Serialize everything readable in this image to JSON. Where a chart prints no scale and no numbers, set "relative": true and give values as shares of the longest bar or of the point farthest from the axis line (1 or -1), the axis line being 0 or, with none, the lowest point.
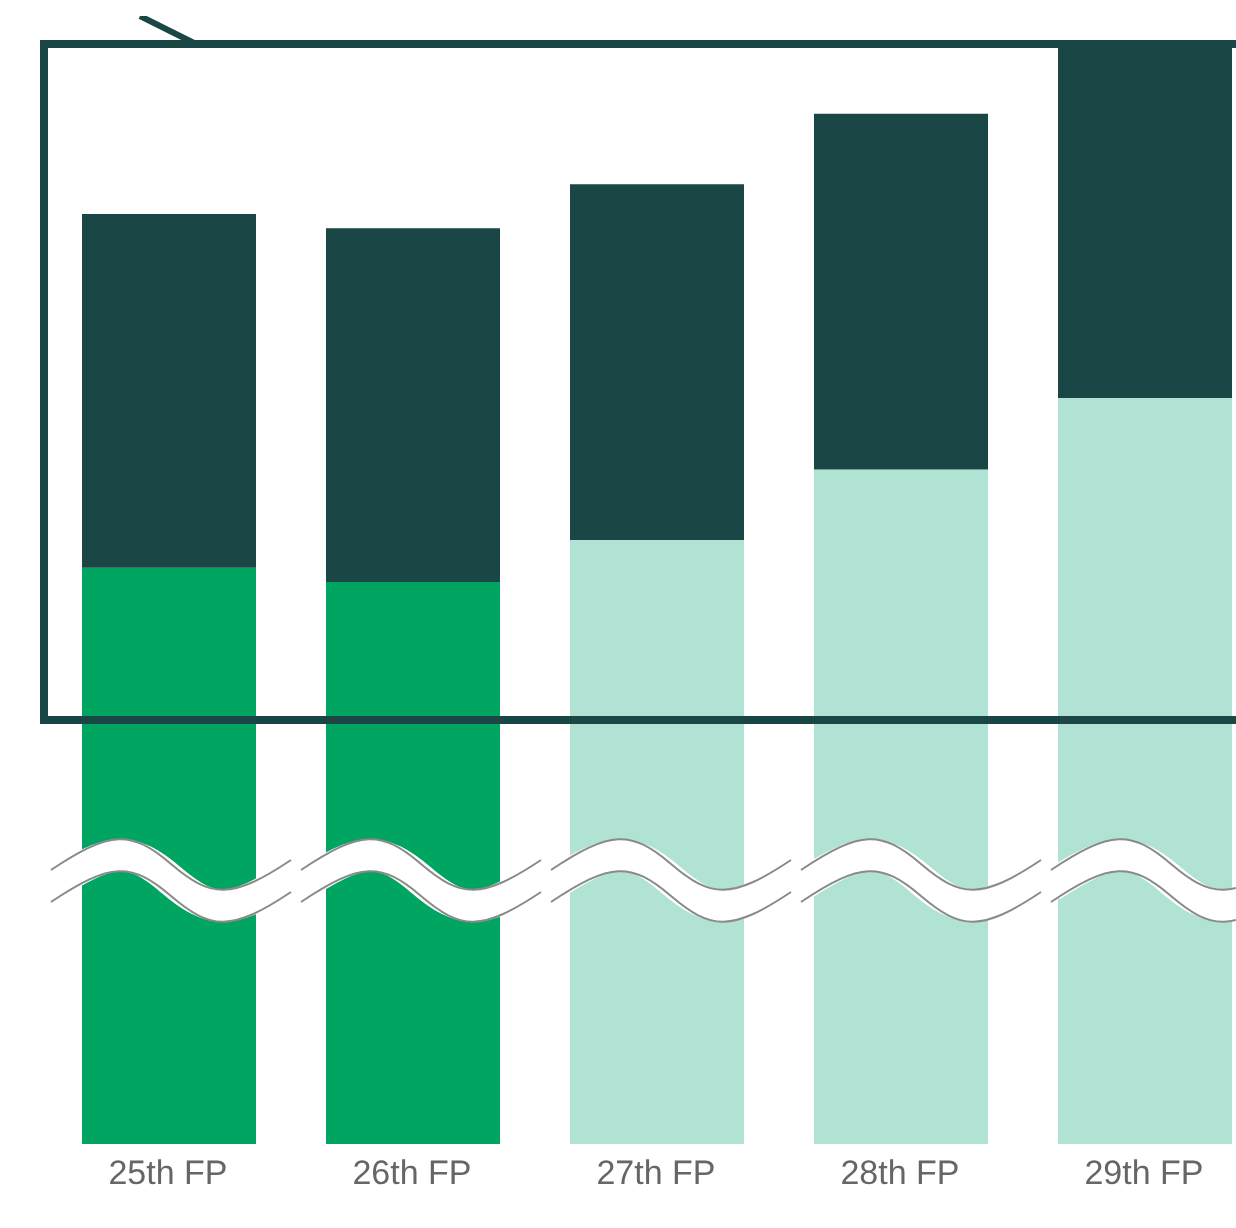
{
  "chart_data": {
    "type": "bar",
    "stacked": true,
    "relative": true,
    "categories": [
      "25th FP",
      "26th FP",
      "27th FP",
      "28th FP",
      "29th FP"
    ],
    "series": [
      {
        "colors": [
          "#00a562",
          "#00a562",
          "#b0e3d3",
          "#b0e3d3",
          "#b0e3d3"
        ],
        "color": "#b0e3d3",
        "values": [
          0.523,
          0.51,
          0.548,
          0.612,
          0.677
        ]
      },
      {
        "color": "#1b4646",
        "values": [
          0.321,
          0.321,
          0.323,
          0.323,
          0.323
        ]
      }
    ],
    "grid": false,
    "legend": false
  }
}
